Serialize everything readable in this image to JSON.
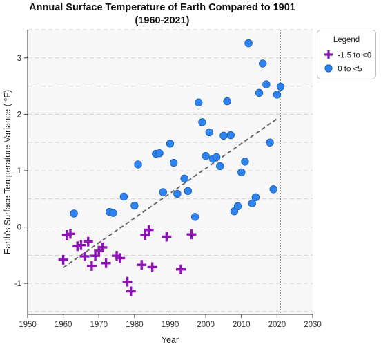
{
  "chart_data": {
    "type": "scatter",
    "title_line1": "Annual Surface Temperature of Earth Compared to 1901",
    "title_line2": "(1960-2021)",
    "xlabel": "Year",
    "ylabel": "Earth's Surface Temperature Variance ( °F)",
    "xlim": [
      1950,
      2030
    ],
    "ylim": [
      -1.55,
      3.5
    ],
    "x_ticks": [
      1950,
      1960,
      1970,
      1980,
      1990,
      2000,
      2010,
      2020,
      2030
    ],
    "y_ticks": [
      -1,
      0,
      1,
      2,
      3
    ],
    "grid": "horizontal dashed",
    "reference_line_x": 2021,
    "trendline": {
      "x": [
        1960,
        2020
      ],
      "y": [
        -0.72,
        1.92
      ],
      "style": "dashed"
    },
    "legend": {
      "title": "Legend",
      "position": "top-right",
      "entries": [
        "-1.5 to <0",
        "0 to <5"
      ]
    },
    "series": [
      {
        "name": "-1.5 to <0",
        "marker": "plus",
        "color": "#8e12b5",
        "points": [
          [
            1960,
            -0.58
          ],
          [
            1961,
            -0.14
          ],
          [
            1962,
            -0.12
          ],
          [
            1964,
            -0.34
          ],
          [
            1965,
            -0.32
          ],
          [
            1966,
            -0.52
          ],
          [
            1967,
            -0.26
          ],
          [
            1968,
            -0.69
          ],
          [
            1969,
            -0.51
          ],
          [
            1970,
            -0.42
          ],
          [
            1971,
            -0.36
          ],
          [
            1972,
            -0.64
          ],
          [
            1975,
            -0.51
          ],
          [
            1976,
            -0.55
          ],
          [
            1978,
            -0.97
          ],
          [
            1979,
            -1.14
          ],
          [
            1982,
            -0.67
          ],
          [
            1983,
            -0.14
          ],
          [
            1984,
            -0.05
          ],
          [
            1985,
            -0.71
          ],
          [
            1989,
            -0.17
          ],
          [
            1993,
            -0.75
          ],
          [
            1996,
            -0.13
          ]
        ]
      },
      {
        "name": "0 to <5",
        "marker": "circle",
        "color": "#2d83f0",
        "points": [
          [
            1963,
            0.24
          ],
          [
            1973,
            0.27
          ],
          [
            1974,
            0.25
          ],
          [
            1977,
            0.54
          ],
          [
            1980,
            0.38
          ],
          [
            1981,
            1.11
          ],
          [
            1986,
            1.3
          ],
          [
            1987,
            1.31
          ],
          [
            1988,
            0.62
          ],
          [
            1990,
            1.48
          ],
          [
            1991,
            1.14
          ],
          [
            1992,
            0.59
          ],
          [
            1994,
            0.86
          ],
          [
            1995,
            0.64
          ],
          [
            1997,
            0.18
          ],
          [
            1998,
            2.21
          ],
          [
            1999,
            1.86
          ],
          [
            2000,
            1.26
          ],
          [
            2001,
            1.68
          ],
          [
            2002,
            1.21
          ],
          [
            2003,
            1.24
          ],
          [
            2004,
            1.08
          ],
          [
            2005,
            1.62
          ],
          [
            2006,
            2.23
          ],
          [
            2007,
            1.63
          ],
          [
            2008,
            0.28
          ],
          [
            2009,
            0.37
          ],
          [
            2010,
            0.97
          ],
          [
            2011,
            1.16
          ],
          [
            2012,
            3.26
          ],
          [
            2013,
            0.42
          ],
          [
            2014,
            0.53
          ],
          [
            2015,
            2.38
          ],
          [
            2016,
            2.9
          ],
          [
            2017,
            2.53
          ],
          [
            2018,
            1.5
          ],
          [
            2019,
            0.67
          ],
          [
            2020,
            2.35
          ],
          [
            2021,
            2.49
          ]
        ]
      }
    ]
  }
}
